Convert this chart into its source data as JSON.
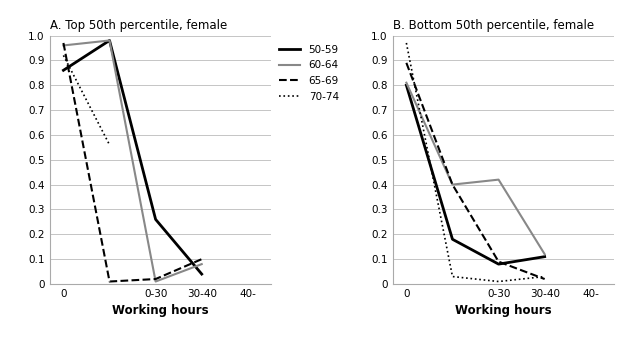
{
  "panel_A": {
    "title": "A. Top 50th percentile, female",
    "series": {
      "50-59": {
        "x": [
          0,
          1,
          2,
          3,
          4
        ],
        "y": [
          0.86,
          0.98,
          0.26,
          0.04,
          null
        ],
        "color": "#000000",
        "lw": 2.0,
        "ls": "-"
      },
      "60-64": {
        "x": [
          0,
          1,
          2,
          3,
          4
        ],
        "y": [
          0.96,
          0.98,
          0.01,
          0.08,
          null
        ],
        "color": "#888888",
        "lw": 1.5,
        "ls": "-"
      },
      "65-69": {
        "x": [
          0,
          1,
          2,
          3,
          4
        ],
        "y": [
          0.97,
          0.01,
          0.02,
          0.1,
          null
        ],
        "color": "#000000",
        "lw": 1.5,
        "ls": "--"
      },
      "70-74": {
        "x": [
          0,
          1,
          2
        ],
        "y": [
          0.92,
          0.56,
          null
        ],
        "color": "#000000",
        "lw": 1.2,
        "ls": ":"
      }
    },
    "xtick_positions": [
      0,
      2,
      3,
      4
    ],
    "xticklabels": [
      "0",
      "0-30",
      "30-40",
      "40-"
    ],
    "xlabel": "Working hours",
    "ylim": [
      0,
      1.0
    ],
    "yticks": [
      0,
      0.1,
      0.2,
      0.3,
      0.4,
      0.5,
      0.6,
      0.7,
      0.8,
      0.9,
      1.0
    ],
    "xlim": [
      -0.3,
      4.5
    ]
  },
  "panel_B": {
    "title": "B. Bottom 50th percentile, female",
    "series": {
      "50-59": {
        "x": [
          0,
          1,
          2,
          3,
          4
        ],
        "y": [
          0.8,
          0.18,
          0.08,
          0.11,
          null
        ],
        "color": "#000000",
        "lw": 2.0,
        "ls": "-"
      },
      "60-64": {
        "x": [
          0,
          1,
          2,
          3,
          4
        ],
        "y": [
          0.81,
          0.4,
          0.42,
          0.12,
          null
        ],
        "color": "#888888",
        "lw": 1.5,
        "ls": "-"
      },
      "65-69": {
        "x": [
          0,
          1,
          2,
          3,
          4
        ],
        "y": [
          0.89,
          0.4,
          0.09,
          0.02,
          null
        ],
        "color": "#000000",
        "lw": 1.5,
        "ls": "--"
      },
      "70-74": {
        "x": [
          0,
          1,
          2,
          3,
          4
        ],
        "y": [
          0.97,
          0.03,
          0.01,
          0.03,
          null
        ],
        "color": "#000000",
        "lw": 1.2,
        "ls": ":"
      }
    },
    "xtick_positions": [
      0,
      2,
      3,
      4
    ],
    "xticklabels": [
      "0",
      "0-30",
      "30-40",
      "40-"
    ],
    "xlabel": "Working hours",
    "ylim": [
      0,
      1.0
    ],
    "yticks": [
      0,
      0.1,
      0.2,
      0.3,
      0.4,
      0.5,
      0.6,
      0.7,
      0.8,
      0.9,
      1.0
    ],
    "xlim": [
      -0.3,
      4.5
    ]
  },
  "legend_labels": [
    "50-59",
    "60-64",
    "65-69",
    "70-74"
  ],
  "legend_styles": [
    {
      "color": "#000000",
      "lw": 2.0,
      "ls": "-"
    },
    {
      "color": "#888888",
      "lw": 1.5,
      "ls": "-"
    },
    {
      "color": "#000000",
      "lw": 1.5,
      "ls": "--"
    },
    {
      "color": "#000000",
      "lw": 1.2,
      "ls": ":"
    }
  ]
}
